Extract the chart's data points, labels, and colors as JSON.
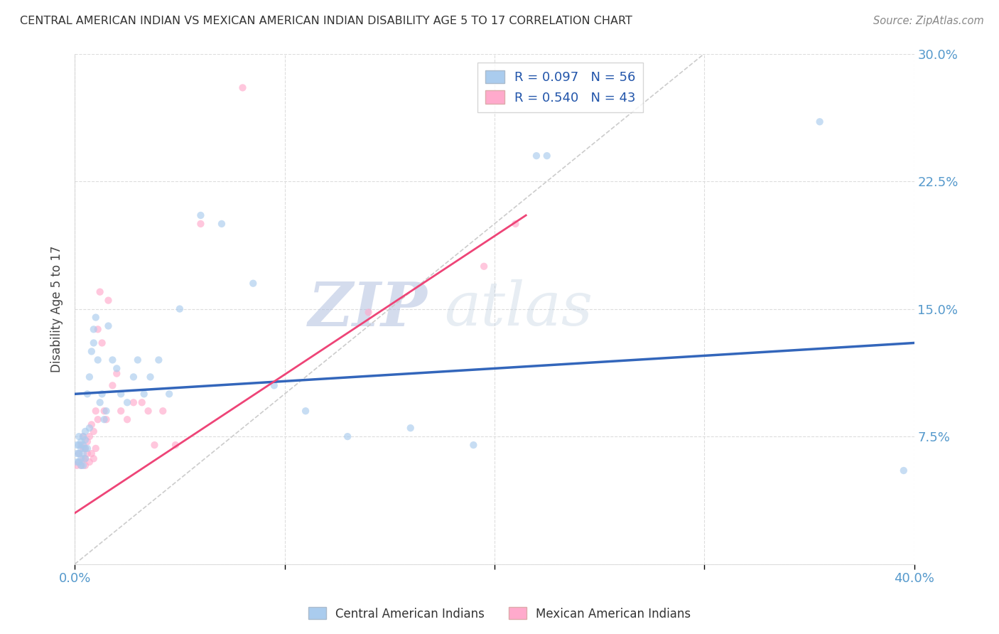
{
  "title": "CENTRAL AMERICAN INDIAN VS MEXICAN AMERICAN INDIAN DISABILITY AGE 5 TO 17 CORRELATION CHART",
  "source": "Source: ZipAtlas.com",
  "ylabel": "Disability Age 5 to 17",
  "xlim": [
    0.0,
    0.4
  ],
  "ylim": [
    0.0,
    0.3
  ],
  "xtick_positions": [
    0.0,
    0.1,
    0.2,
    0.3,
    0.4
  ],
  "xticklabels": [
    "0.0%",
    "",
    "",
    "",
    "40.0%"
  ],
  "ytick_positions": [
    0.0,
    0.075,
    0.15,
    0.225,
    0.3
  ],
  "yticklabels": [
    "",
    "7.5%",
    "15.0%",
    "22.5%",
    "30.0%"
  ],
  "blue_scatter_x": [
    0.001,
    0.001,
    0.001,
    0.002,
    0.002,
    0.002,
    0.002,
    0.003,
    0.003,
    0.003,
    0.003,
    0.004,
    0.004,
    0.004,
    0.004,
    0.005,
    0.005,
    0.005,
    0.005,
    0.006,
    0.006,
    0.007,
    0.007,
    0.008,
    0.009,
    0.009,
    0.01,
    0.011,
    0.012,
    0.013,
    0.014,
    0.015,
    0.016,
    0.018,
    0.02,
    0.022,
    0.025,
    0.028,
    0.03,
    0.033,
    0.036,
    0.04,
    0.045,
    0.05,
    0.06,
    0.07,
    0.085,
    0.095,
    0.11,
    0.13,
    0.16,
    0.19,
    0.22,
    0.225,
    0.355,
    0.395
  ],
  "blue_scatter_y": [
    0.06,
    0.065,
    0.07,
    0.06,
    0.065,
    0.07,
    0.075,
    0.058,
    0.062,
    0.068,
    0.072,
    0.058,
    0.065,
    0.07,
    0.075,
    0.062,
    0.068,
    0.073,
    0.078,
    0.068,
    0.1,
    0.08,
    0.11,
    0.125,
    0.13,
    0.138,
    0.145,
    0.12,
    0.095,
    0.1,
    0.085,
    0.09,
    0.14,
    0.12,
    0.115,
    0.1,
    0.095,
    0.11,
    0.12,
    0.1,
    0.11,
    0.12,
    0.1,
    0.15,
    0.205,
    0.2,
    0.165,
    0.105,
    0.09,
    0.075,
    0.08,
    0.07,
    0.24,
    0.24,
    0.26,
    0.055
  ],
  "pink_scatter_x": [
    0.001,
    0.002,
    0.002,
    0.003,
    0.003,
    0.004,
    0.004,
    0.004,
    0.005,
    0.005,
    0.005,
    0.006,
    0.006,
    0.007,
    0.007,
    0.008,
    0.008,
    0.009,
    0.009,
    0.01,
    0.01,
    0.011,
    0.011,
    0.012,
    0.013,
    0.014,
    0.015,
    0.016,
    0.018,
    0.02,
    0.022,
    0.025,
    0.028,
    0.032,
    0.035,
    0.038,
    0.042,
    0.048,
    0.06,
    0.08,
    0.14,
    0.195,
    0.21
  ],
  "pink_scatter_y": [
    0.058,
    0.06,
    0.065,
    0.058,
    0.07,
    0.062,
    0.068,
    0.075,
    0.058,
    0.062,
    0.068,
    0.065,
    0.072,
    0.06,
    0.075,
    0.065,
    0.082,
    0.062,
    0.078,
    0.068,
    0.09,
    0.085,
    0.138,
    0.16,
    0.13,
    0.09,
    0.085,
    0.155,
    0.105,
    0.112,
    0.09,
    0.085,
    0.095,
    0.095,
    0.09,
    0.07,
    0.09,
    0.07,
    0.2,
    0.28,
    0.148,
    0.175,
    0.2
  ],
  "blue_R": 0.097,
  "blue_N": 56,
  "pink_R": 0.54,
  "pink_N": 43,
  "blue_line_start_x": 0.0,
  "blue_line_end_x": 0.4,
  "blue_line_start_y": 0.1,
  "blue_line_end_y": 0.13,
  "pink_line_start_x": 0.0,
  "pink_line_end_x": 0.215,
  "pink_line_start_y": 0.03,
  "pink_line_end_y": 0.205,
  "blue_color": "#AACCEE",
  "pink_color": "#FFAACC",
  "blue_line_color": "#3366BB",
  "pink_line_color": "#EE4477",
  "diag_color": "#CCCCCC",
  "scatter_alpha": 0.65,
  "scatter_size": 55,
  "watermark_zip": "ZIP",
  "watermark_atlas": "atlas",
  "background_color": "#FFFFFF",
  "grid_color": "#DDDDDD"
}
